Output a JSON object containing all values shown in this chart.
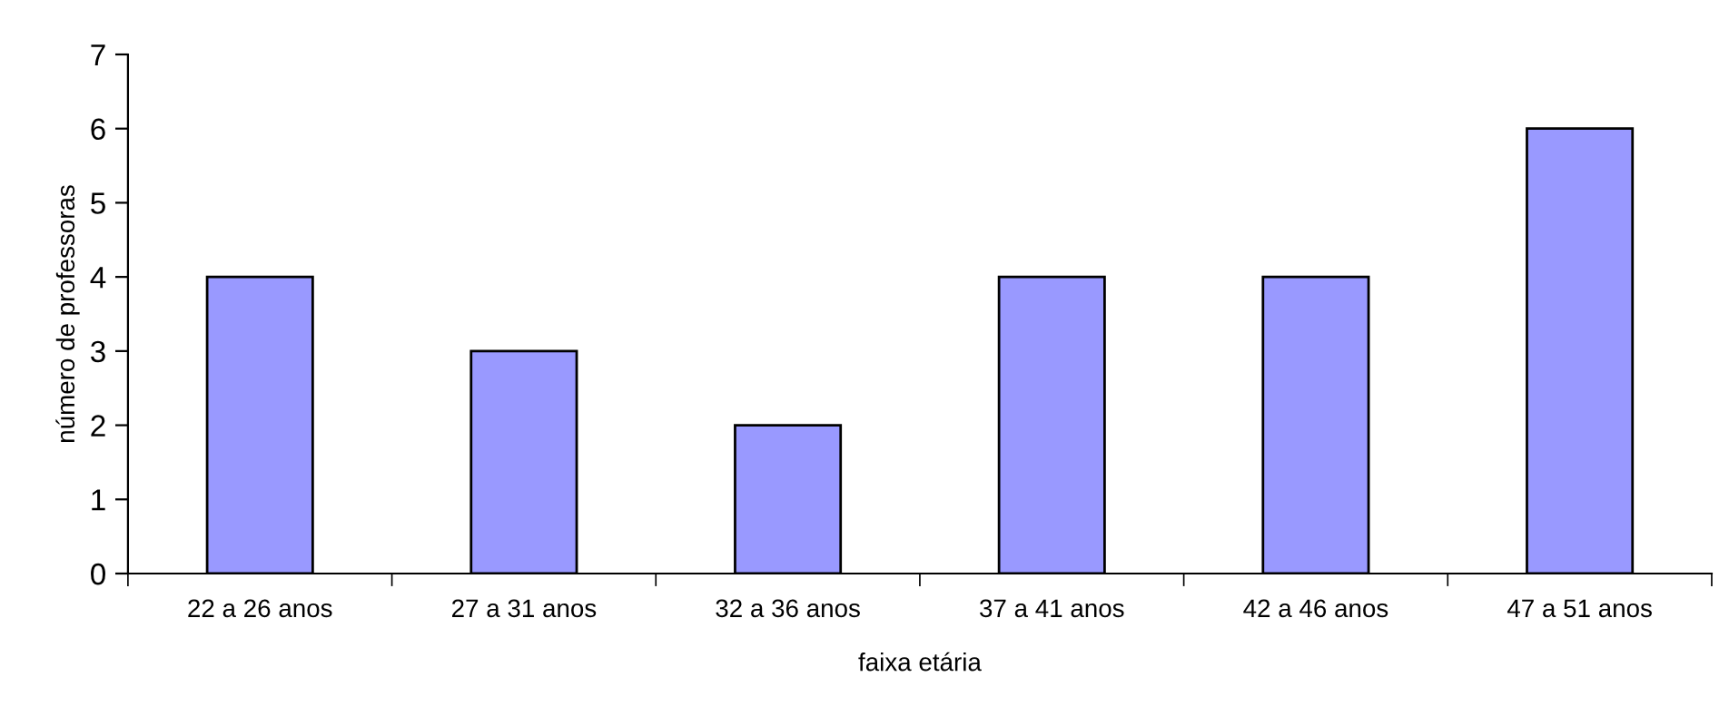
{
  "chart_data": {
    "type": "bar",
    "xlabel": "faixa etária",
    "ylabel": "número de professoras",
    "categories": [
      "22 a 26 anos",
      "27 a 31 anos",
      "32 a 36 anos",
      "37 a 41 anos",
      "42 a 46 anos",
      "47 a 51 anos"
    ],
    "values": [
      4,
      3,
      2,
      4,
      4,
      6
    ],
    "color": "#9999ff",
    "ylim": [
      0,
      7
    ],
    "yticks": [
      0,
      1,
      2,
      3,
      4,
      5,
      6,
      7
    ],
    "grid": false,
    "legend": false
  }
}
